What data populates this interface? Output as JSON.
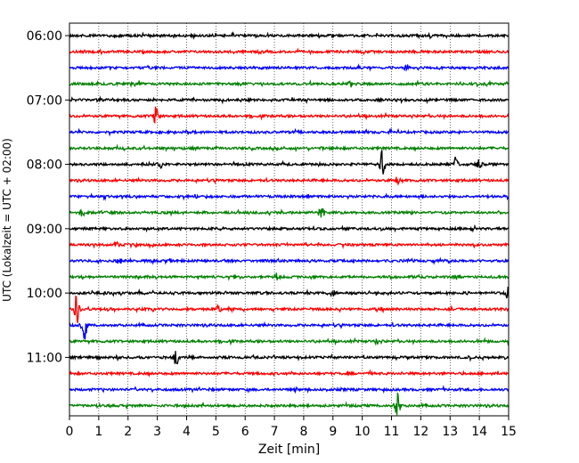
{
  "chart_data": {
    "type": "line",
    "title": "",
    "xlabel": "Zeit  [min]",
    "ylabel": "UTC (Lokalzeit = UTC + 02:00)",
    "xlim": [
      0,
      15
    ],
    "x_ticks": [
      0,
      1,
      2,
      3,
      4,
      5,
      6,
      7,
      8,
      9,
      10,
      11,
      12,
      13,
      14,
      15
    ],
    "y_ticks": [
      "06:00",
      "07:00",
      "08:00",
      "09:00",
      "10:00",
      "11:00"
    ],
    "grid": "vertical dotted",
    "trace_colors": [
      "#000000",
      "#ff0000",
      "#0000ff",
      "#008000"
    ],
    "series": [
      {
        "start": "06:00",
        "events": [
          {
            "x": 12.3,
            "amp": 0.2
          }
        ]
      },
      {
        "start": "06:15",
        "events": []
      },
      {
        "start": "06:30",
        "events": [
          {
            "x": 11.5,
            "amp": 0.25
          }
        ]
      },
      {
        "start": "06:45",
        "events": [
          {
            "x": 9.6,
            "amp": 0.45
          },
          {
            "x": 2.4,
            "amp": 0.2
          }
        ]
      },
      {
        "start": "07:00",
        "events": []
      },
      {
        "start": "07:15",
        "events": [
          {
            "x": 2.95,
            "amp": 0.8
          }
        ]
      },
      {
        "start": "07:30",
        "events": []
      },
      {
        "start": "07:45",
        "events": []
      },
      {
        "start": "08:00",
        "events": [
          {
            "x": 10.7,
            "amp": 1.4
          },
          {
            "x": 13.2,
            "amp": 0.6
          },
          {
            "x": 14.0,
            "amp": 0.7
          },
          {
            "x": 3.1,
            "amp": 0.3
          }
        ]
      },
      {
        "start": "08:15",
        "events": [
          {
            "x": 11.2,
            "amp": 0.5
          }
        ]
      },
      {
        "start": "08:30",
        "events": []
      },
      {
        "start": "08:45",
        "events": [
          {
            "x": 8.6,
            "amp": 0.7
          },
          {
            "x": 0.4,
            "amp": 0.3
          }
        ]
      },
      {
        "start": "09:00",
        "events": []
      },
      {
        "start": "09:15",
        "events": [
          {
            "x": 1.6,
            "amp": 0.35
          }
        ]
      },
      {
        "start": "09:30",
        "events": [
          {
            "x": 1.7,
            "amp": 0.4
          }
        ]
      },
      {
        "start": "09:45",
        "events": [
          {
            "x": 7.1,
            "amp": 0.4
          },
          {
            "x": 13.2,
            "amp": 0.3
          }
        ]
      },
      {
        "start": "10:00",
        "events": [
          {
            "x": 14.95,
            "amp": 0.5
          },
          {
            "x": 9.0,
            "amp": 0.3
          }
        ]
      },
      {
        "start": "10:15",
        "events": [
          {
            "x": 0.25,
            "amp": 1.3
          },
          {
            "x": 5.1,
            "amp": 0.3
          }
        ]
      },
      {
        "start": "10:30",
        "events": [
          {
            "x": 0.5,
            "amp": 1.6
          }
        ]
      },
      {
        "start": "10:45",
        "events": [
          {
            "x": 10.5,
            "amp": 0.3
          }
        ]
      },
      {
        "start": "11:00",
        "events": [
          {
            "x": 3.65,
            "amp": 0.7
          }
        ]
      },
      {
        "start": "11:15",
        "events": []
      },
      {
        "start": "11:30",
        "events": []
      },
      {
        "start": "11:45",
        "events": [
          {
            "x": 11.2,
            "amp": 1.0
          }
        ]
      }
    ]
  }
}
